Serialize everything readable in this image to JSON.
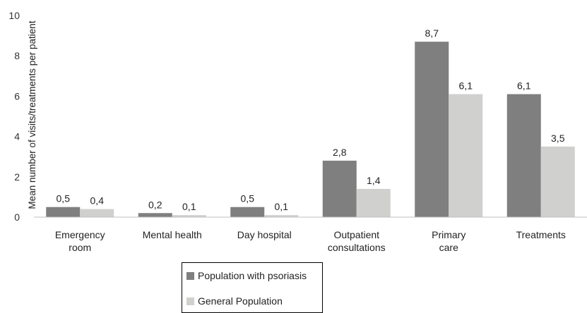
{
  "chart_data": {
    "type": "bar",
    "title": "",
    "xlabel": "",
    "ylabel": "Mean number of visits/treatments per patient",
    "ylim": [
      0,
      10
    ],
    "yticks": [
      "0",
      "2",
      "4",
      "6",
      "8",
      "10"
    ],
    "grid": false,
    "legend_position": "bottom",
    "categories": [
      [
        "Emergency",
        "room"
      ],
      [
        "Mental health"
      ],
      [
        "Day hospital"
      ],
      [
        "Outpatient",
        "consultations"
      ],
      [
        "Primary",
        "care"
      ],
      [
        "Treatments"
      ]
    ],
    "series": [
      {
        "name": "Population with psoriasis",
        "color": "#7f7f7f",
        "values": [
          0.5,
          0.2,
          0.5,
          2.8,
          8.7,
          6.1
        ],
        "labels": [
          "0,5",
          "0,2",
          "0,5",
          "2,8",
          "8,7",
          "6,1"
        ]
      },
      {
        "name": "General Population",
        "color": "#d0d0ce",
        "values": [
          0.4,
          0.1,
          0.1,
          1.4,
          6.1,
          3.5
        ],
        "labels": [
          "0,4",
          "0,1",
          "0,1",
          "1,4",
          "6,1",
          "3,5"
        ]
      }
    ]
  }
}
